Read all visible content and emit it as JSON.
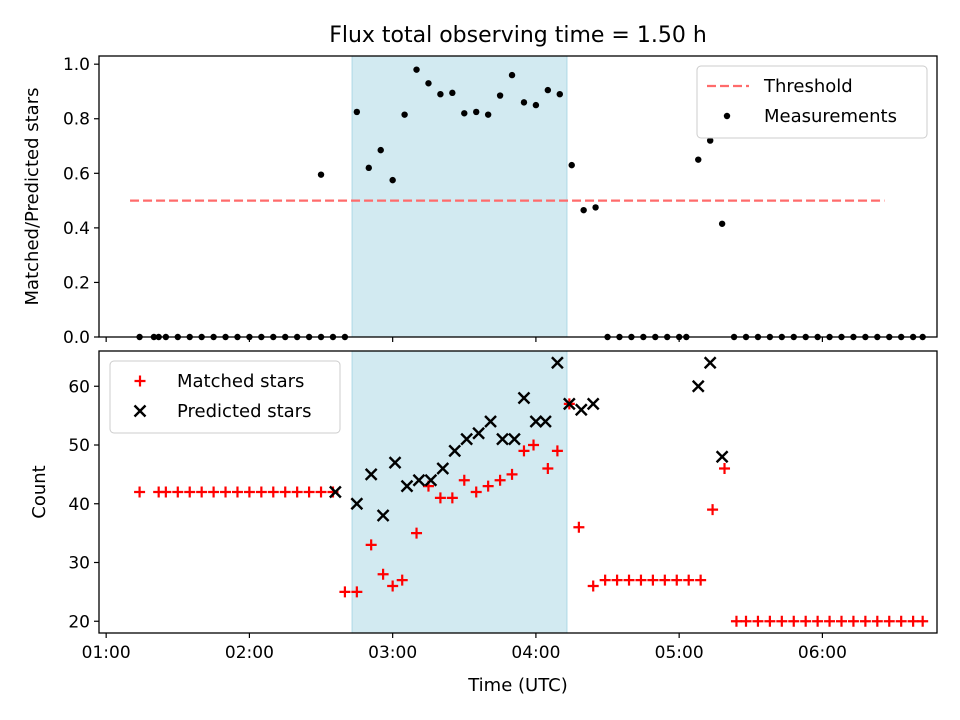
{
  "chart_data": [
    {
      "type": "scatter",
      "title": "Flux total observing time = 1.50 h",
      "xlabel": "",
      "ylabel": "Matched/Predicted stars",
      "xlim": [
        "00:57",
        "06:48"
      ],
      "ylim": [
        0,
        1.03
      ],
      "yticks": [
        0.0,
        0.2,
        0.4,
        0.6,
        0.8,
        1.0
      ],
      "ytick_labels": [
        "0.0",
        "0.2",
        "0.4",
        "0.6",
        "0.8",
        "1.0"
      ],
      "xticks": [
        "01:00",
        "02:00",
        "03:00",
        "04:00",
        "05:00",
        "06:00"
      ],
      "shaded_interval": [
        "02:43",
        "04:13"
      ],
      "shade_color": "#add8e6",
      "legend_position": "top-right",
      "threshold": {
        "name": "Threshold",
        "value": 0.5,
        "x_range": [
          "01:10",
          "06:26"
        ],
        "color": "#ff6b6b",
        "style": "dashed"
      },
      "series": [
        {
          "name": "Measurements",
          "color": "#000000",
          "marker": "dot",
          "points": [
            [
              "01:14",
              0
            ],
            [
              "01:20",
              0
            ],
            [
              "01:22",
              0
            ],
            [
              "01:25",
              0
            ],
            [
              "01:30",
              0
            ],
            [
              "01:35",
              0
            ],
            [
              "01:40",
              0
            ],
            [
              "01:45",
              0
            ],
            [
              "01:50",
              0
            ],
            [
              "01:55",
              0
            ],
            [
              "02:00",
              0
            ],
            [
              "02:05",
              0
            ],
            [
              "02:10",
              0
            ],
            [
              "02:15",
              0
            ],
            [
              "02:20",
              0
            ],
            [
              "02:25",
              0
            ],
            [
              "02:30",
              0
            ],
            [
              "02:35",
              0
            ],
            [
              "02:40",
              0
            ],
            [
              "02:45",
              0.825
            ],
            [
              "02:50",
              0.62
            ],
            [
              "02:55",
              0.685
            ],
            [
              "03:00",
              0.575
            ],
            [
              "03:05",
              0.815
            ],
            [
              "03:10",
              0.98
            ],
            [
              "03:15",
              0.93
            ],
            [
              "03:20",
              0.89
            ],
            [
              "03:25",
              0.895
            ],
            [
              "03:30",
              0.82
            ],
            [
              "03:35",
              0.825
            ],
            [
              "03:40",
              0.815
            ],
            [
              "03:45",
              0.885
            ],
            [
              "03:50",
              0.96
            ],
            [
              "03:55",
              0.86
            ],
            [
              "04:00",
              0.85
            ],
            [
              "04:05",
              0.905
            ],
            [
              "04:10",
              0.89
            ],
            [
              "04:15",
              0.63
            ],
            [
              "04:20",
              0.465
            ],
            [
              "04:25",
              0.475
            ],
            [
              "04:30",
              0
            ],
            [
              "04:35",
              0
            ],
            [
              "04:40",
              0
            ],
            [
              "04:45",
              0
            ],
            [
              "04:50",
              0
            ],
            [
              "04:55",
              0
            ],
            [
              "05:00",
              0
            ],
            [
              "05:03",
              0
            ],
            [
              "05:08",
              0.65
            ],
            [
              "05:13",
              0.72
            ],
            [
              "05:18",
              0.415
            ],
            [
              "05:23",
              0
            ],
            [
              "05:28",
              0
            ],
            [
              "05:33",
              0
            ],
            [
              "05:38",
              0
            ],
            [
              "05:43",
              0
            ],
            [
              "05:48",
              0
            ],
            [
              "05:53",
              0
            ],
            [
              "05:58",
              0
            ],
            [
              "06:03",
              0
            ],
            [
              "06:08",
              0
            ],
            [
              "06:13",
              0
            ],
            [
              "06:18",
              0
            ],
            [
              "06:23",
              0
            ],
            [
              "06:28",
              0
            ],
            [
              "06:33",
              0
            ],
            [
              "06:38",
              0
            ],
            [
              "06:42",
              0
            ],
            [
              "02:30",
              0.595
            ]
          ]
        }
      ]
    },
    {
      "type": "scatter",
      "title": "",
      "xlabel": "Time (UTC)",
      "ylabel": "Count",
      "xlim": [
        "00:57",
        "06:48"
      ],
      "ylim": [
        18,
        66
      ],
      "yticks": [
        20,
        30,
        40,
        50,
        60
      ],
      "ytick_labels": [
        "20",
        "30",
        "40",
        "50",
        "60"
      ],
      "xticks": [
        "01:00",
        "02:00",
        "03:00",
        "04:00",
        "05:00",
        "06:00"
      ],
      "xtick_labels": [
        "01:00",
        "02:00",
        "03:00",
        "04:00",
        "05:00",
        "06:00"
      ],
      "shaded_interval": [
        "02:43",
        "04:13"
      ],
      "shade_color": "#add8e6",
      "legend_position": "top-left",
      "series": [
        {
          "name": "Matched stars",
          "color": "#ff0000",
          "marker": "plus",
          "points": [
            [
              "01:14",
              42
            ],
            [
              "01:22",
              42
            ],
            [
              "01:25",
              42
            ],
            [
              "01:30",
              42
            ],
            [
              "01:35",
              42
            ],
            [
              "01:40",
              42
            ],
            [
              "01:45",
              42
            ],
            [
              "01:50",
              42
            ],
            [
              "01:55",
              42
            ],
            [
              "02:00",
              42
            ],
            [
              "02:05",
              42
            ],
            [
              "02:10",
              42
            ],
            [
              "02:15",
              42
            ],
            [
              "02:20",
              42
            ],
            [
              "02:25",
              42
            ],
            [
              "02:30",
              42
            ],
            [
              "02:35",
              42
            ],
            [
              "02:40",
              25
            ],
            [
              "02:45",
              25
            ],
            [
              "02:51",
              33
            ],
            [
              "02:56",
              28
            ],
            [
              "03:00",
              26
            ],
            [
              "03:04",
              27
            ],
            [
              "03:10",
              35
            ],
            [
              "03:15",
              43
            ],
            [
              "03:20",
              41
            ],
            [
              "03:25",
              41
            ],
            [
              "03:30",
              44
            ],
            [
              "03:35",
              42
            ],
            [
              "03:40",
              43
            ],
            [
              "03:45",
              44
            ],
            [
              "03:50",
              45
            ],
            [
              "03:55",
              49
            ],
            [
              "03:59",
              50
            ],
            [
              "04:05",
              46
            ],
            [
              "04:09",
              49
            ],
            [
              "04:14",
              57
            ],
            [
              "04:18",
              36
            ],
            [
              "04:24",
              26
            ],
            [
              "04:29",
              27
            ],
            [
              "04:34",
              27
            ],
            [
              "04:39",
              27
            ],
            [
              "04:44",
              27
            ],
            [
              "04:49",
              27
            ],
            [
              "04:54",
              27
            ],
            [
              "04:59",
              27
            ],
            [
              "05:04",
              27
            ],
            [
              "05:09",
              27
            ],
            [
              "05:14",
              39
            ],
            [
              "05:19",
              46
            ],
            [
              "05:24",
              20
            ],
            [
              "05:28",
              20
            ],
            [
              "05:33",
              20
            ],
            [
              "05:38",
              20
            ],
            [
              "05:43",
              20
            ],
            [
              "05:48",
              20
            ],
            [
              "05:53",
              20
            ],
            [
              "05:58",
              20
            ],
            [
              "06:03",
              20
            ],
            [
              "06:08",
              20
            ],
            [
              "06:13",
              20
            ],
            [
              "06:18",
              20
            ],
            [
              "06:23",
              20
            ],
            [
              "06:28",
              20
            ],
            [
              "06:33",
              20
            ],
            [
              "06:38",
              20
            ],
            [
              "06:42",
              20
            ]
          ]
        },
        {
          "name": "Predicted stars",
          "color": "#000000",
          "marker": "x",
          "points": [
            [
              "02:36",
              42
            ],
            [
              "02:45",
              40
            ],
            [
              "02:51",
              45
            ],
            [
              "02:56",
              38
            ],
            [
              "03:01",
              47
            ],
            [
              "03:06",
              43
            ],
            [
              "03:11",
              44
            ],
            [
              "03:16",
              44
            ],
            [
              "03:21",
              46
            ],
            [
              "03:26",
              49
            ],
            [
              "03:31",
              51
            ],
            [
              "03:36",
              52
            ],
            [
              "03:41",
              54
            ],
            [
              "03:46",
              51
            ],
            [
              "03:51",
              51
            ],
            [
              "03:55",
              58
            ],
            [
              "04:00",
              54
            ],
            [
              "04:04",
              54
            ],
            [
              "04:09",
              64
            ],
            [
              "04:14",
              57
            ],
            [
              "04:19",
              56
            ],
            [
              "04:24",
              57
            ],
            [
              "05:08",
              60
            ],
            [
              "05:13",
              64
            ],
            [
              "05:18",
              48
            ]
          ]
        }
      ]
    }
  ]
}
